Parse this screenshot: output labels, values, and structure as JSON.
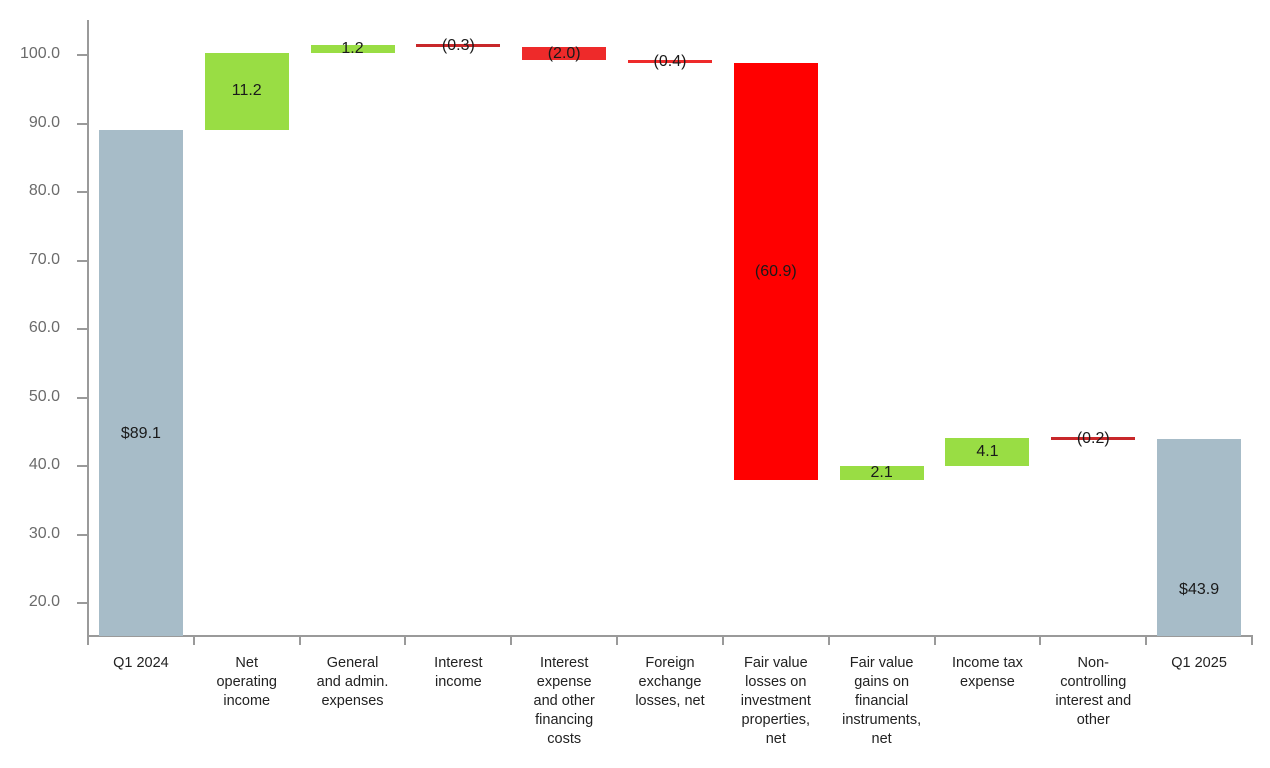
{
  "chart_data": {
    "type": "waterfall",
    "title": "",
    "xlabel": "",
    "ylabel": "",
    "ylim": [
      15.2,
      105
    ],
    "yticks": [
      20.0,
      30.0,
      40.0,
      50.0,
      60.0,
      70.0,
      80.0,
      90.0,
      100.0
    ],
    "ytick_labels": [
      "20.0",
      "30.0",
      "40.0",
      "50.0",
      "60.0",
      "70.0",
      "80.0",
      "90.0",
      "100.0"
    ],
    "grid": false,
    "legend": null,
    "categories": [
      "Q1 2024",
      "Net\noperating\nincome",
      "General\nand admin.\nexpenses",
      "Interest\nincome",
      "Interest\nexpense\nand other\nfinancing\ncosts",
      "Foreign\nexchange\nlosses, net",
      "Fair value\nlosses on\ninvestment\nproperties,\nnet",
      "Fair value\ngains on\nfinancial\ninstruments,\nnet",
      "Income tax\nexpense",
      "Non-\ncontrolling\ninterest and\nother",
      "Q1 2025"
    ],
    "values": [
      89.1,
      11.2,
      1.2,
      -0.3,
      -2.0,
      -0.4,
      -60.9,
      2.1,
      4.1,
      -0.2,
      43.9
    ],
    "labels": [
      "$89.1",
      "11.2",
      "1.2",
      "(0.3)",
      "(2.0)",
      "(0.4)",
      "(60.9)",
      "2.1",
      "4.1",
      "(0.2)",
      "$43.9"
    ],
    "kinds": [
      "total",
      "delta",
      "delta",
      "delta",
      "delta",
      "delta",
      "delta",
      "delta",
      "delta",
      "delta",
      "total"
    ],
    "colors": {
      "total": "#a7bcc8",
      "increase": "#99dd44",
      "decrease": "#ee2a2a",
      "large_decrease": "#ff0000",
      "thin_decrease": "#c8282a",
      "axis": "#9a9a9a"
    }
  }
}
